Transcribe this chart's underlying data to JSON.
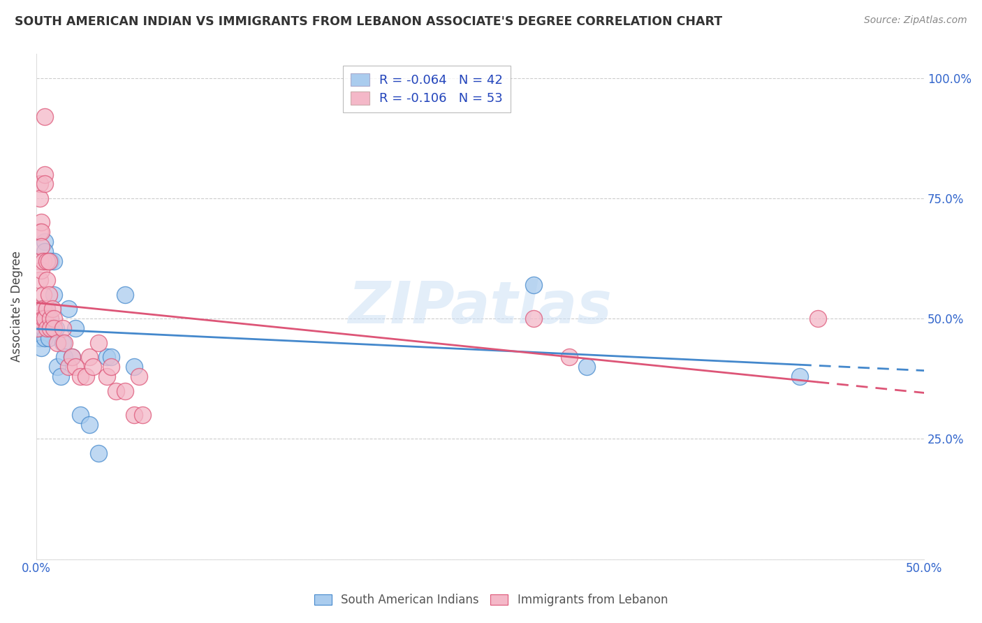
{
  "title": "SOUTH AMERICAN INDIAN VS IMMIGRANTS FROM LEBANON ASSOCIATE'S DEGREE CORRELATION CHART",
  "source": "Source: ZipAtlas.com",
  "ylabel": "Associate's Degree",
  "xlim": [
    0.0,
    0.5
  ],
  "ylim": [
    0.0,
    1.05
  ],
  "xticks": [
    0.0,
    0.1,
    0.2,
    0.3,
    0.4,
    0.5
  ],
  "xticklabels": [
    "0.0%",
    "",
    "",
    "",
    "",
    "50.0%"
  ],
  "yticks": [
    0.0,
    0.25,
    0.5,
    0.75,
    1.0
  ],
  "yticklabels_right": [
    "",
    "25.0%",
    "50.0%",
    "75.0%",
    "100.0%"
  ],
  "legend_label1": "R = -0.064   N = 42",
  "legend_label2": "R = -0.106   N = 53",
  "blue_color": "#aaccee",
  "pink_color": "#f4b8c8",
  "blue_line_color": "#4488cc",
  "pink_line_color": "#dd5577",
  "grid_color": "#cccccc",
  "watermark": "ZIPatlas",
  "blue_x": [
    0.001,
    0.001,
    0.002,
    0.002,
    0.002,
    0.003,
    0.003,
    0.003,
    0.003,
    0.004,
    0.004,
    0.004,
    0.005,
    0.005,
    0.005,
    0.006,
    0.006,
    0.007,
    0.007,
    0.008,
    0.008,
    0.009,
    0.01,
    0.01,
    0.011,
    0.012,
    0.014,
    0.015,
    0.016,
    0.018,
    0.02,
    0.022,
    0.025,
    0.03,
    0.035,
    0.04,
    0.042,
    0.05,
    0.055,
    0.28,
    0.31,
    0.43
  ],
  "blue_y": [
    0.48,
    0.5,
    0.48,
    0.5,
    0.46,
    0.5,
    0.52,
    0.48,
    0.44,
    0.5,
    0.52,
    0.48,
    0.66,
    0.64,
    0.46,
    0.5,
    0.52,
    0.48,
    0.46,
    0.5,
    0.62,
    0.48,
    0.62,
    0.55,
    0.48,
    0.4,
    0.38,
    0.45,
    0.42,
    0.52,
    0.42,
    0.48,
    0.3,
    0.28,
    0.22,
    0.42,
    0.42,
    0.55,
    0.4,
    0.57,
    0.4,
    0.38
  ],
  "pink_x": [
    0.001,
    0.001,
    0.001,
    0.001,
    0.002,
    0.002,
    0.002,
    0.002,
    0.002,
    0.003,
    0.003,
    0.003,
    0.003,
    0.004,
    0.004,
    0.004,
    0.004,
    0.005,
    0.005,
    0.005,
    0.006,
    0.006,
    0.006,
    0.006,
    0.007,
    0.007,
    0.008,
    0.008,
    0.009,
    0.01,
    0.01,
    0.012,
    0.015,
    0.016,
    0.018,
    0.02,
    0.022,
    0.025,
    0.028,
    0.03,
    0.032,
    0.035,
    0.04,
    0.042,
    0.045,
    0.05,
    0.055,
    0.058,
    0.06,
    0.28,
    0.3,
    0.44,
    0.005
  ],
  "pink_y": [
    0.5,
    0.52,
    0.5,
    0.48,
    0.78,
    0.75,
    0.68,
    0.62,
    0.58,
    0.7,
    0.68,
    0.65,
    0.6,
    0.62,
    0.55,
    0.52,
    0.5,
    0.8,
    0.78,
    0.5,
    0.62,
    0.58,
    0.52,
    0.48,
    0.62,
    0.55,
    0.5,
    0.48,
    0.52,
    0.5,
    0.48,
    0.45,
    0.48,
    0.45,
    0.4,
    0.42,
    0.4,
    0.38,
    0.38,
    0.42,
    0.4,
    0.45,
    0.38,
    0.4,
    0.35,
    0.35,
    0.3,
    0.38,
    0.3,
    0.5,
    0.42,
    0.5,
    0.92
  ]
}
